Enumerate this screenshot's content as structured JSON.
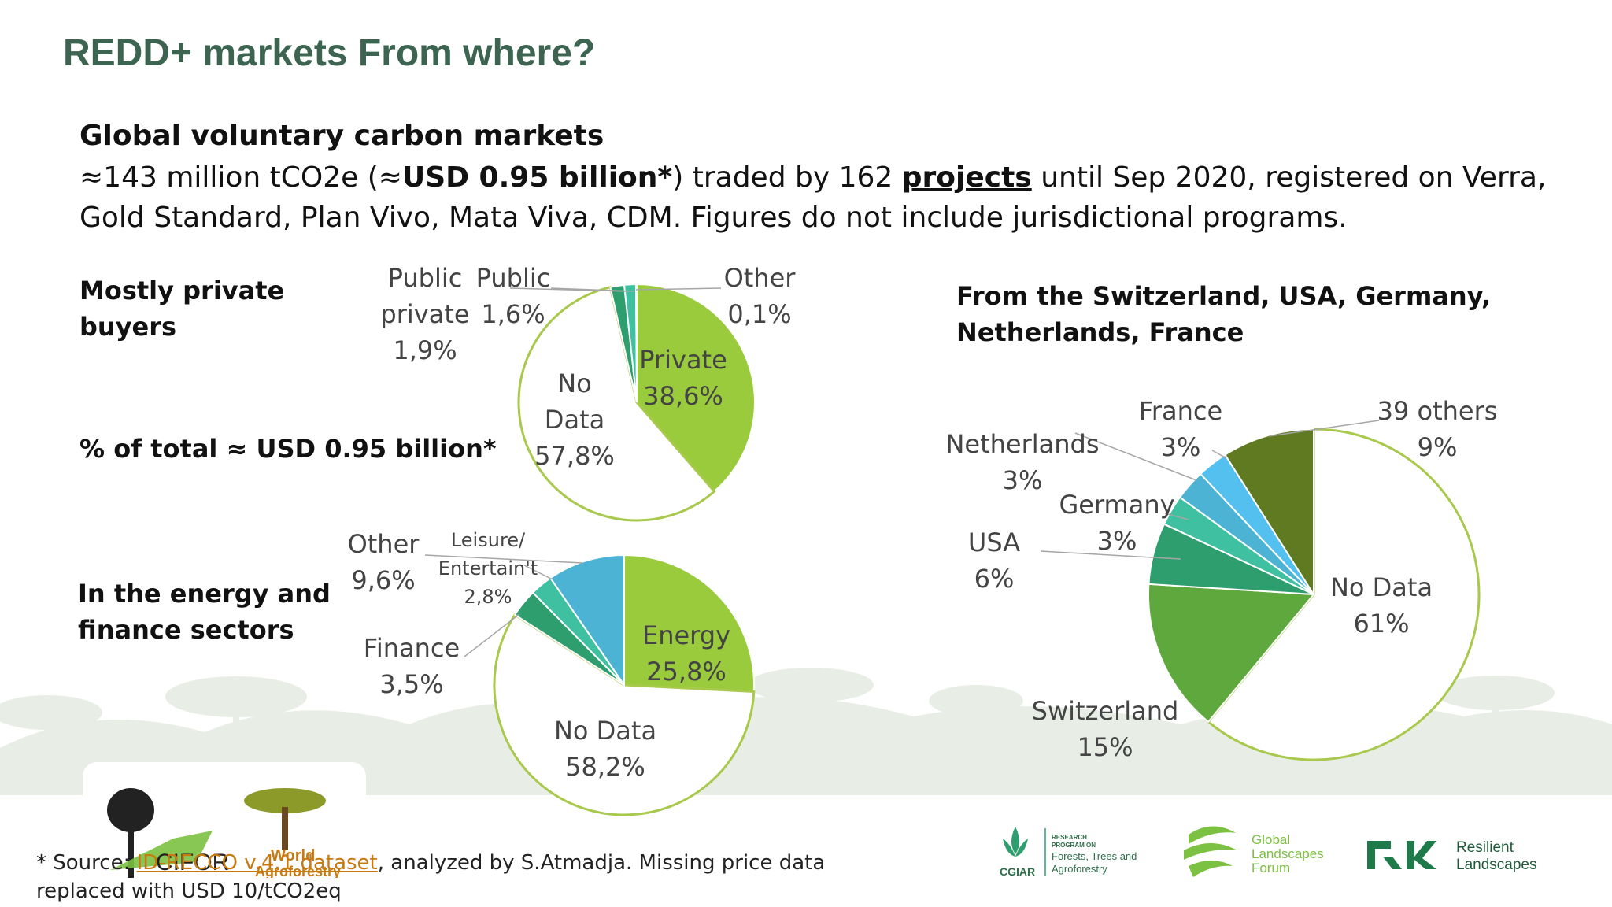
{
  "title": "REDD+ markets From where?",
  "subtitle": "Global voluntary carbon markets",
  "summary": {
    "part1": "≈143 million tCO2e (≈",
    "bold1": "USD 0.95 billion*",
    "part2": ") traded by 162 ",
    "bold2": "projects",
    "part3": " until Sep 2020, registered on Verra, Gold Standard, Plan Vivo, Mata Viva, CDM. Figures do not include jurisdictional programs."
  },
  "side_labels": {
    "buyers_line1": "Mostly private",
    "buyers_line2": "buyers",
    "percent_total": "% of total ≈ USD 0.95 billion*",
    "sectors_line1": "In the energy and",
    "sectors_line2": "finance sectors",
    "countries_line1": "From the Switzerland, USA, Germany,",
    "countries_line2": "Netherlands, France"
  },
  "footer": {
    "prefix": "* Source: ",
    "link_text": "ID-RECCO v.4.1 dataset",
    "suffix": ", analyzed by S.Atmadja. Missing price data",
    "line2": "replaced with USD 10/tCO2eq"
  },
  "logos": {
    "cifor": "CIFOR",
    "world": "World",
    "agroforestry": "Agroforestry",
    "cgiar": "CGIAR",
    "ftaline1": "RESEARCH",
    "ftaline2": "PROGRAM ON",
    "ftaline3": "Forests, Trees and",
    "ftaline4": "Agroforestry",
    "glf1": "Global",
    "glf2": "Landscapes",
    "glf3": "Forum",
    "rl1": "Resilient",
    "rl2": "Landscapes"
  },
  "colors": {
    "title": "#3d6450",
    "lime": "#9acb3d",
    "teal_dark": "#2f9e6e",
    "teal": "#3fc0a0",
    "blue": "#4cb3d4",
    "green_mid": "#5ea83e",
    "green_dark": "#5f7a20",
    "sky": "#54c0ef",
    "outline": "#a8c94c"
  },
  "chart_data": [
    {
      "type": "pie",
      "slices": [
        {
          "label": "Private",
          "value": 38.6,
          "display": "38,6%",
          "color": "#9acb3d"
        },
        {
          "label": "No Data",
          "value": 57.8,
          "display": "57,8%",
          "color": "#ffffff"
        },
        {
          "label": "Public private",
          "value": 1.9,
          "display": "1,9%",
          "color": "#2f9e6e"
        },
        {
          "label": "Public",
          "value": 1.6,
          "display": "1,6%",
          "color": "#3fc0a0"
        },
        {
          "label": "Other",
          "value": 0.1,
          "display": "0,1%",
          "color": "#4cb3d4"
        }
      ]
    },
    {
      "type": "pie",
      "slices": [
        {
          "label": "Energy",
          "value": 25.8,
          "display": "25,8%",
          "color": "#9acb3d"
        },
        {
          "label": "No Data",
          "value": 58.2,
          "display": "58,2%",
          "color": "#ffffff"
        },
        {
          "label": "Finance",
          "value": 3.5,
          "display": "3,5%",
          "color": "#2f9e6e"
        },
        {
          "label": "Leisure/ Entertain't",
          "value": 2.8,
          "display": "2,8%",
          "color": "#3fc0a0"
        },
        {
          "label": "Other",
          "value": 9.6,
          "display": "9,6%",
          "color": "#4cb3d4"
        }
      ]
    },
    {
      "type": "pie",
      "slices": [
        {
          "label": "No Data",
          "value": 61,
          "display": "61%",
          "color": "#ffffff"
        },
        {
          "label": "Switzerland",
          "value": 15,
          "display": "15%",
          "color": "#5ea83e"
        },
        {
          "label": "USA",
          "value": 6,
          "display": "6%",
          "color": "#2f9e6e"
        },
        {
          "label": "Germany",
          "value": 3,
          "display": "3%",
          "color": "#3fc0a0"
        },
        {
          "label": "Netherlands",
          "value": 3,
          "display": "3%",
          "color": "#4cb3d4"
        },
        {
          "label": "France",
          "value": 3,
          "display": "3%",
          "color": "#54c0ef"
        },
        {
          "label": "39 others",
          "value": 9,
          "display": "9%",
          "color": "#5f7a20"
        }
      ]
    }
  ]
}
